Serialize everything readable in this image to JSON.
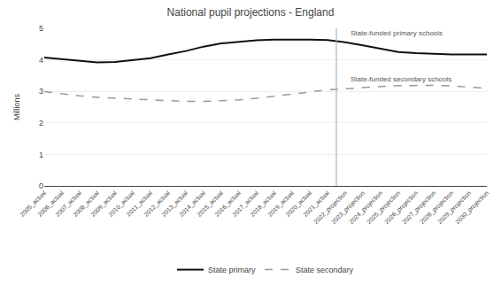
{
  "chart_data": {
    "type": "line",
    "title": "National pupil projections - England",
    "ylabel": "Millions",
    "categories": [
      "2005_actual",
      "2006_actual",
      "2007_actual",
      "2008_actual",
      "2009_actual",
      "2010_actual",
      "2011_actual",
      "2012_actual",
      "2013_actual",
      "2014_actual",
      "2015_actual",
      "2016_actual",
      "2017_actual",
      "2018_actual",
      "2019_actual",
      "2020_actual",
      "2021_actual",
      "2022_projection",
      "2023_projection",
      "2024_projection",
      "2025_projection",
      "2026_projection",
      "2027_projection",
      "2028_projection",
      "2029_projection",
      "2030_projection"
    ],
    "series": [
      {
        "name": "State primary",
        "color": "#111111",
        "line_style": "solid",
        "values": [
          4.07,
          4.02,
          3.97,
          3.92,
          3.93,
          3.98,
          4.05,
          4.17,
          4.28,
          4.42,
          4.52,
          4.57,
          4.62,
          4.64,
          4.65,
          4.64,
          4.63,
          4.56,
          4.46,
          4.35,
          4.25,
          4.21,
          4.18,
          4.17,
          4.17,
          4.17
        ]
      },
      {
        "name": "State secondary",
        "color": "#999999",
        "line_style": "dashed",
        "values": [
          2.99,
          2.92,
          2.86,
          2.81,
          2.78,
          2.76,
          2.72,
          2.7,
          2.68,
          2.68,
          2.7,
          2.73,
          2.78,
          2.84,
          2.91,
          2.98,
          3.05,
          3.09,
          3.12,
          3.15,
          3.18,
          3.19,
          3.19,
          3.17,
          3.14,
          3.1
        ]
      }
    ],
    "annotations": [
      "State-funded primary schools",
      "State-funded secondary schools"
    ],
    "ylim": [
      0,
      5
    ],
    "yticks": [
      0,
      1,
      2,
      3,
      4,
      5
    ],
    "grid": true,
    "legend": "bottom"
  }
}
